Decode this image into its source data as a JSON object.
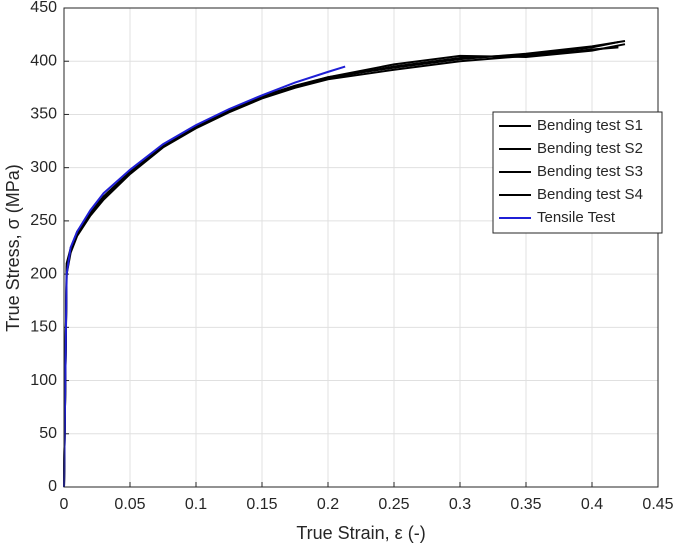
{
  "chart_data": {
    "type": "line",
    "xlabel": "True Strain, ε (-)",
    "ylabel": "True Stress, σ (MPa)",
    "xlim": [
      0,
      0.45
    ],
    "xticks": [
      0,
      0.05,
      0.1,
      0.15,
      0.2,
      0.25,
      0.3,
      0.35,
      0.4,
      0.45
    ],
    "ylim": [
      0,
      450
    ],
    "yticks": [
      0,
      50,
      100,
      150,
      200,
      250,
      300,
      350,
      400,
      450
    ],
    "grid": true,
    "legend": "upper right",
    "series": [
      {
        "name": "Bending test S1",
        "color": "#000000",
        "x": [
          0,
          0.001,
          0.002,
          0.005,
          0.01,
          0.02,
          0.03,
          0.05,
          0.075,
          0.1,
          0.125,
          0.15,
          0.175,
          0.2,
          0.25,
          0.3,
          0.35,
          0.4,
          0.42
        ],
        "values": [
          0,
          100,
          205,
          222,
          238,
          256,
          272,
          295,
          320,
          338,
          353,
          366,
          376,
          384,
          395,
          403,
          406,
          413,
          418
        ]
      },
      {
        "name": "Bending test S2",
        "color": "#000000",
        "x": [
          0,
          0.001,
          0.002,
          0.005,
          0.01,
          0.02,
          0.03,
          0.05,
          0.075,
          0.1,
          0.125,
          0.15,
          0.175,
          0.2,
          0.25,
          0.3,
          0.35,
          0.4,
          0.425
        ],
        "values": [
          0,
          100,
          210,
          224,
          240,
          258,
          273,
          296,
          321,
          339,
          354,
          367,
          377,
          385,
          397,
          405,
          404,
          410,
          416
        ]
      },
      {
        "name": "Bending test S3",
        "color": "#000000",
        "x": [
          0,
          0.001,
          0.002,
          0.005,
          0.01,
          0.02,
          0.03,
          0.05,
          0.075,
          0.1,
          0.125,
          0.15,
          0.175,
          0.2,
          0.25,
          0.3,
          0.35,
          0.4,
          0.42
        ],
        "values": [
          0,
          100,
          200,
          220,
          236,
          255,
          270,
          294,
          319,
          337,
          352,
          365,
          375,
          383,
          392,
          400,
          405,
          411,
          413
        ]
      },
      {
        "name": "Bending test S4",
        "color": "#000000",
        "x": [
          0,
          0.001,
          0.002,
          0.005,
          0.01,
          0.02,
          0.03,
          0.05,
          0.075,
          0.1,
          0.125,
          0.15,
          0.175,
          0.2,
          0.25,
          0.3,
          0.35,
          0.4,
          0.425
        ],
        "values": [
          0,
          100,
          207,
          223,
          239,
          257,
          272,
          295,
          320,
          338,
          353,
          366,
          376,
          385,
          394,
          402,
          407,
          414,
          419
        ]
      },
      {
        "name": "Tensile Test",
        "color": "#1f1fd6",
        "x": [
          0,
          0.001,
          0.002,
          0.005,
          0.01,
          0.02,
          0.03,
          0.05,
          0.075,
          0.1,
          0.125,
          0.15,
          0.175,
          0.2,
          0.213
        ],
        "values": [
          0,
          100,
          200,
          225,
          240,
          260,
          276,
          298,
          322,
          340,
          355,
          368,
          380,
          390,
          395
        ]
      }
    ]
  }
}
